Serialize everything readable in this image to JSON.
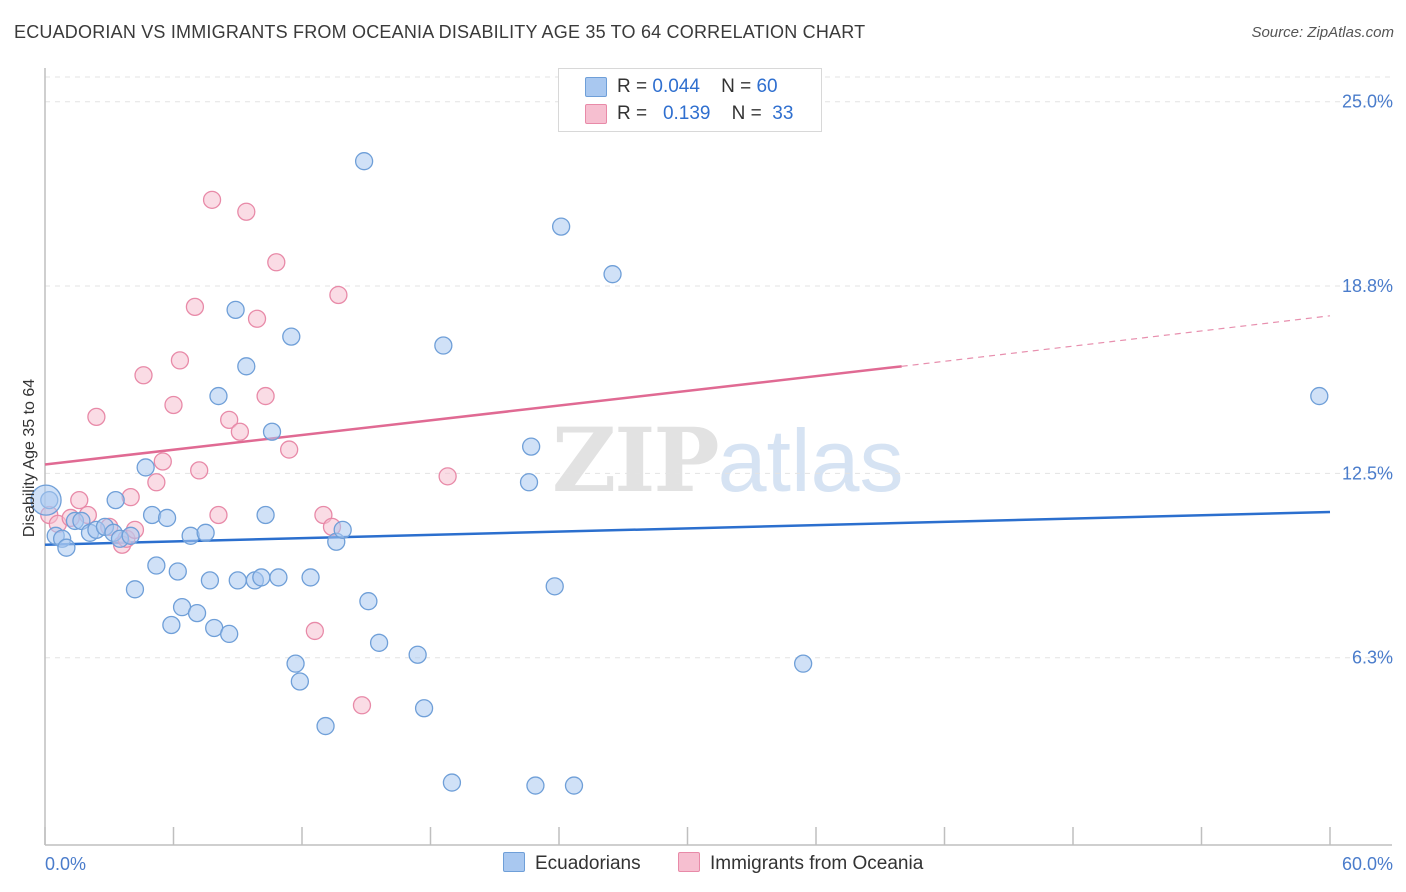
{
  "title": "ECUADORIAN VS IMMIGRANTS FROM OCEANIA DISABILITY AGE 35 TO 64 CORRELATION CHART",
  "source": "Source: ZipAtlas.com",
  "watermark": {
    "zip": "ZIP",
    "atlas": "atlas"
  },
  "legend": {
    "rows": [
      {
        "r_label": "R =",
        "r_value": "0.044",
        "n_label": "N =",
        "n_value": "60"
      },
      {
        "r_label": "R =",
        "r_value": "0.139",
        "n_label": "N =",
        "n_value": "33"
      }
    ]
  },
  "bottom_legend": [
    "Ecuadorians",
    "Immigrants from Oceania"
  ],
  "chart_data": {
    "type": "scatter",
    "title": "ECUADORIAN VS IMMIGRANTS FROM OCEANIA DISABILITY AGE 35 TO 64 CORRELATION CHART",
    "xlabel": "",
    "ylabel": "Disability Age 35 to 64",
    "xlim": [
      0,
      60
    ],
    "ylim": [
      0,
      26
    ],
    "x_tick_labels": [
      "0.0%",
      "60.0%"
    ],
    "y_ticks": [
      6.3,
      12.5,
      18.8,
      25.0
    ],
    "y_tick_labels": [
      "6.3%",
      "12.5%",
      "18.8%",
      "25.0%"
    ],
    "grid": true,
    "legend_placement": "top-center",
    "series": [
      {
        "name": "Ecuadorians",
        "color": "#a9c8f0",
        "stroke": "#6f9fd8",
        "trend_color": "#2b6fce",
        "trend": {
          "x0": 0,
          "y0": 10.1,
          "x1": 60,
          "y1": 11.2
        },
        "points": [
          [
            0.2,
            11.6
          ],
          [
            0.5,
            10.4
          ],
          [
            0.8,
            10.3
          ],
          [
            1.0,
            10.0
          ],
          [
            1.4,
            10.9
          ],
          [
            1.7,
            10.9
          ],
          [
            2.1,
            10.5
          ],
          [
            2.4,
            10.6
          ],
          [
            2.8,
            10.7
          ],
          [
            3.2,
            10.5
          ],
          [
            3.3,
            11.6
          ],
          [
            3.5,
            10.3
          ],
          [
            4.0,
            10.4
          ],
          [
            4.2,
            8.6
          ],
          [
            4.7,
            12.7
          ],
          [
            5.0,
            11.1
          ],
          [
            5.2,
            9.4
          ],
          [
            5.7,
            11.0
          ],
          [
            5.9,
            7.4
          ],
          [
            6.2,
            9.2
          ],
          [
            6.4,
            8.0
          ],
          [
            6.8,
            10.4
          ],
          [
            7.1,
            7.8
          ],
          [
            7.5,
            10.5
          ],
          [
            7.7,
            8.9
          ],
          [
            7.9,
            7.3
          ],
          [
            8.1,
            15.1
          ],
          [
            8.6,
            7.1
          ],
          [
            8.9,
            18.0
          ],
          [
            9.0,
            8.9
          ],
          [
            9.4,
            16.1
          ],
          [
            9.8,
            8.9
          ],
          [
            10.1,
            9.0
          ],
          [
            10.3,
            11.1
          ],
          [
            10.6,
            13.9
          ],
          [
            10.9,
            9.0
          ],
          [
            11.5,
            17.1
          ],
          [
            11.7,
            6.1
          ],
          [
            11.9,
            5.5
          ],
          [
            12.4,
            9.0
          ],
          [
            13.1,
            4.0
          ],
          [
            13.6,
            10.2
          ],
          [
            13.9,
            10.6
          ],
          [
            14.9,
            23.0
          ],
          [
            15.1,
            8.2
          ],
          [
            15.6,
            6.8
          ],
          [
            17.4,
            6.4
          ],
          [
            17.7,
            4.6
          ],
          [
            18.6,
            16.8
          ],
          [
            19.0,
            2.1
          ],
          [
            22.6,
            12.2
          ],
          [
            22.7,
            13.4
          ],
          [
            22.9,
            2.0
          ],
          [
            23.8,
            8.7
          ],
          [
            24.1,
            20.8
          ],
          [
            24.7,
            2.0
          ],
          [
            26.5,
            19.2
          ],
          [
            35.4,
            6.1
          ],
          [
            59.5,
            15.1
          ],
          [
            0.05,
            11.6
          ]
        ]
      },
      {
        "name": "Immigrants from Oceania",
        "color": "#f6bfd0",
        "stroke": "#e88aa8",
        "trend_color": "#e06a93",
        "trend": {
          "x0": 0,
          "y0": 12.8,
          "x1": 40,
          "y1": 16.1
        },
        "trend_dashed": {
          "x0": 40,
          "y0": 16.1,
          "x1": 60,
          "y1": 17.8
        },
        "points": [
          [
            0.2,
            11.1
          ],
          [
            0.6,
            10.8
          ],
          [
            1.2,
            11.0
          ],
          [
            1.6,
            11.6
          ],
          [
            2.0,
            11.1
          ],
          [
            2.4,
            14.4
          ],
          [
            3.0,
            10.7
          ],
          [
            3.6,
            10.1
          ],
          [
            3.8,
            10.3
          ],
          [
            4.0,
            11.7
          ],
          [
            4.2,
            10.6
          ],
          [
            4.6,
            15.8
          ],
          [
            5.2,
            12.2
          ],
          [
            5.5,
            12.9
          ],
          [
            6.0,
            14.8
          ],
          [
            6.3,
            16.3
          ],
          [
            7.0,
            18.1
          ],
          [
            7.2,
            12.6
          ],
          [
            7.8,
            21.7
          ],
          [
            8.1,
            11.1
          ],
          [
            8.6,
            14.3
          ],
          [
            9.1,
            13.9
          ],
          [
            9.4,
            21.3
          ],
          [
            9.9,
            17.7
          ],
          [
            10.3,
            15.1
          ],
          [
            10.8,
            19.6
          ],
          [
            11.4,
            13.3
          ],
          [
            12.6,
            7.2
          ],
          [
            13.0,
            11.1
          ],
          [
            13.4,
            10.7
          ],
          [
            13.7,
            18.5
          ],
          [
            14.8,
            4.7
          ],
          [
            18.8,
            12.4
          ]
        ]
      }
    ],
    "point_sizes_note": ""
  }
}
